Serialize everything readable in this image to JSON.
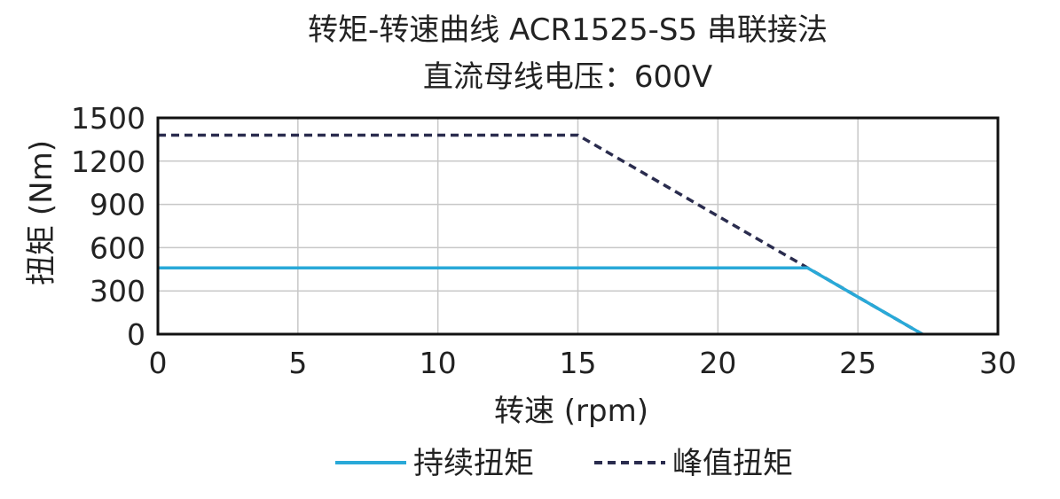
{
  "chart_data": {
    "type": "line",
    "title": "转矩-转速曲线 ACR1525-S5 串联接法",
    "subtitle": "直流母线电压：600V",
    "xlabel": "转速 (rpm)",
    "ylabel": "扭矩 (Nm)",
    "xlim": [
      0,
      30
    ],
    "ylim": [
      0,
      1500
    ],
    "xticks": [
      0,
      5,
      10,
      15,
      20,
      25,
      30
    ],
    "yticks": [
      0,
      300,
      600,
      900,
      1200,
      1500
    ],
    "grid": true,
    "legend_position": "bottom",
    "series": [
      {
        "name": "持续扭矩",
        "color": "#29a9d8",
        "dash": "solid",
        "points": [
          {
            "x": 0,
            "y": 460
          },
          {
            "x": 23.2,
            "y": 460
          },
          {
            "x": 27.3,
            "y": 0
          }
        ]
      },
      {
        "name": "峰值扭矩",
        "color": "#2a2c4e",
        "dash": "dashed",
        "points": [
          {
            "x": 0,
            "y": 1380
          },
          {
            "x": 15,
            "y": 1380
          },
          {
            "x": 27.3,
            "y": 0
          }
        ]
      }
    ]
  }
}
